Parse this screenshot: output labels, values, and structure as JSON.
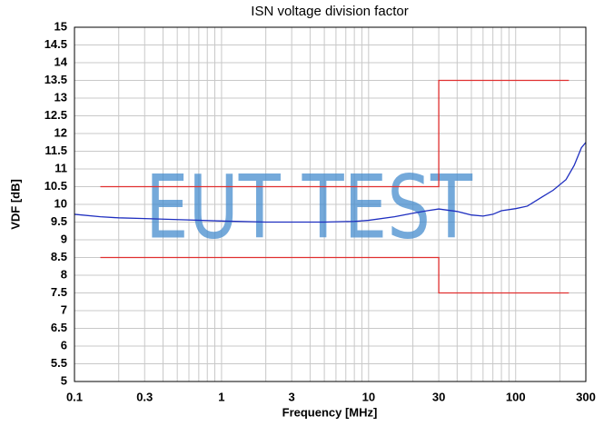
{
  "chart_data": {
    "type": "line",
    "title": "ISN voltage division factor",
    "x_label": "Frequency [MHz]",
    "y_label": "VDF [dB]",
    "watermark": "EUT TEST",
    "x_scale": "log",
    "grid": true,
    "xlim": [
      0.1,
      300
    ],
    "xticks": [
      0.1,
      0.3,
      1,
      3,
      10,
      30,
      100,
      300
    ],
    "xminorticks": [
      0.2,
      0.4,
      0.5,
      0.6,
      0.7,
      0.8,
      0.9,
      2,
      4,
      5,
      6,
      7,
      8,
      9,
      20,
      40,
      50,
      60,
      70,
      80,
      90,
      200
    ],
    "ylim": [
      5,
      15
    ],
    "yticks": [
      5,
      5.5,
      6,
      6.5,
      7,
      7.5,
      8,
      8.5,
      9,
      9.5,
      10,
      10.5,
      11,
      11.5,
      12,
      12.5,
      13,
      13.5,
      14,
      14.5,
      15
    ],
    "series": [
      {
        "color": "#1f2fc0",
        "x": [
          0.1,
          0.15,
          0.2,
          0.3,
          0.5,
          1,
          2,
          5,
          8,
          10,
          15,
          20,
          25,
          30,
          40,
          50,
          60,
          70,
          80,
          100,
          120,
          150,
          180,
          220,
          250,
          280,
          300
        ],
        "values": [
          9.72,
          9.65,
          9.62,
          9.6,
          9.57,
          9.53,
          9.5,
          9.5,
          9.52,
          9.55,
          9.65,
          9.75,
          9.82,
          9.87,
          9.8,
          9.7,
          9.67,
          9.72,
          9.82,
          9.88,
          9.95,
          10.2,
          10.4,
          10.7,
          11.1,
          11.6,
          11.75
        ]
      },
      {
        "color": "#e03030",
        "x": [
          0.15,
          30,
          30,
          230
        ],
        "values": [
          10.5,
          10.5,
          13.5,
          13.5
        ]
      },
      {
        "color": "#e03030",
        "x": [
          0.15,
          30,
          30,
          230
        ],
        "values": [
          8.5,
          8.5,
          7.5,
          7.5
        ]
      }
    ]
  }
}
